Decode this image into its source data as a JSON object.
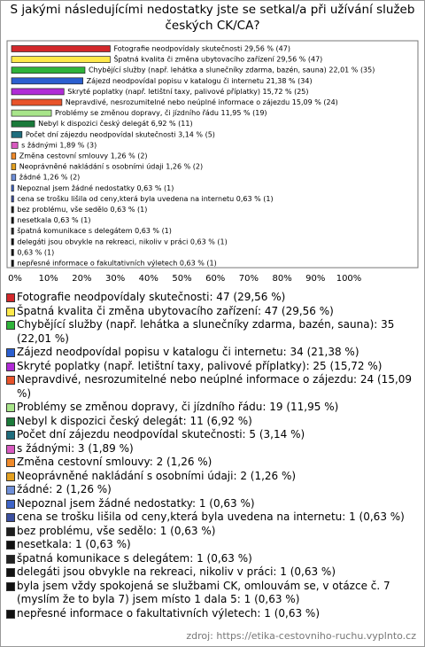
{
  "chart_data": {
    "type": "barh",
    "title": "S jakými následujícími nedostatky jste se setkal/a při užívání služeb českých CK/CA?",
    "source": "zdroj: https://etika-cestovniho-ruchu.vyplnto.cz",
    "values": [
      29.56,
      29.56,
      22.01,
      21.38,
      15.72,
      15.09,
      11.95,
      6.92,
      3.14,
      1.89,
      1.26,
      1.26,
      1.26,
      0.63,
      0.63,
      0.63,
      0.63,
      0.63,
      0.63,
      0.63,
      0.63
    ],
    "value_labels": [
      "Fotografie neodpovídaly skutečnosti 29,56 % (47)",
      "Špatná kvalita či změna ubytovacího zařízení 29,56 % (47)",
      "Chybějící služby (např. lehátka a slunečníky zdarma, bazén, sauna) 22,01 % (35)",
      "Zájezd neodpovídal popisu v katalogu či internetu 21,38 % (34)",
      "Skryté poplatky (např. letištní taxy, palivové příplatky) 15,72 % (25)",
      "Nepravdivé, nesrozumitelné nebo neúplné informace o zájezdu 15,09 % (24)",
      "Problémy se změnou dopravy, či jízdního řádu 11,95 % (19)",
      "Nebyl k dispozici český delegát 6,92 % (11)",
      "Počet dní zájezdu neodpovídal skutečnosti 3,14 % (5)",
      "s žádnými 1,89 % (3)",
      "Změna cestovní smlouvy 1,26 % (2)",
      "Neoprávněné nakládání s osobními údaji 1,26 % (2)",
      "žádné 1,26 % (2)",
      "Nepoznal jsem žádné nedostatky 0,63 % (1)",
      "cena se trošku lišila od ceny,která byla uvedena na internetu 0,63 % (1)",
      "bez problému, vše sedělo 0,63 % (1)",
      "nesetkala 0,63 % (1)",
      "špatná komunikace s delegátem 0,63 % (1)",
      "delegáti jsou obvykle na rekreaci, nikoliv v práci 0,63 % (1)",
      "0,63 % (1)",
      "nepřesné informace o fakultativních výletech 0,63 % (1)"
    ],
    "legend_labels": [
      "Fotografie neodpovídaly skutečnosti: 47 (29,56 %)",
      "Špatná kvalita či změna ubytovacího zařízení: 47 (29,56 %)",
      "Chybějící služby (např. lehátka a slunečníky zdarma, bazén, sauna): 35 (22,01 %)",
      "Zájezd neodpovídal popisu v katalogu či internetu: 34 (21,38 %)",
      "Skryté poplatky (např. letištní taxy, palivové příplatky): 25 (15,72 %)",
      "Nepravdivé, nesrozumitelné nebo neúplné informace o zájezdu: 24 (15,09 %)",
      "Problémy se změnou dopravy, či jízdního řádu: 19 (11,95 %)",
      "Nebyl k dispozici český delegát: 11 (6,92 %)",
      "Počet dní zájezdu neodpovídal skutečnosti: 5 (3,14 %)",
      "s žádnými: 3 (1,89 %)",
      "Změna cestovní smlouvy: 2 (1,26 %)",
      "Neoprávněné nakládání s osobními údaji: 2 (1,26 %)",
      "žádné: 2 (1,26 %)",
      "Nepoznal jsem žádné nedostatky: 1 (0,63 %)",
      "cena se trošku lišila od ceny,která byla uvedena na internetu: 1 (0,63 %)",
      "bez problému, vše sedělo: 1 (0,63 %)",
      "nesetkala: 1 (0,63 %)",
      "špatná komunikace s delegátem: 1 (0,63 %)",
      "delegáti jsou obvykle na rekreaci, nikoliv v práci: 1 (0,63 %)",
      "byla jsem vždy spokojená se službami CK, omlouvám se, v otázce č. 7 (myslím že to byla 7) jsem místo 1 dala 5: 1 (0,63 %)",
      "nepřesné informace o fakultativních výletech: 1 (0,63 %)"
    ],
    "colors": [
      "#d3282b",
      "#ffe94a",
      "#2fb33a",
      "#2b5fd0",
      "#b02bd6",
      "#e8532a",
      "#a8e58a",
      "#1a7a3a",
      "#1f6d7d",
      "#d85ac0",
      "#f08a2a",
      "#e3a020",
      "#6f8fd8",
      "#3e64c8",
      "#3b4fa0",
      "#1e1e1e",
      "#111111",
      "#222222",
      "#111111",
      "#111111",
      "#111111"
    ],
    "xlim": [
      0,
      100
    ],
    "xticks": [
      {
        "value": 0,
        "label": "0%"
      },
      {
        "value": 10,
        "label": "10%"
      },
      {
        "value": 20,
        "label": "20%"
      },
      {
        "value": 30,
        "label": "30%"
      },
      {
        "value": 40,
        "label": "40%"
      },
      {
        "value": 50,
        "label": "50%"
      },
      {
        "value": 60,
        "label": "60%"
      },
      {
        "value": 70,
        "label": "70%"
      },
      {
        "value": 80,
        "label": "80%"
      },
      {
        "value": 90,
        "label": "90%"
      },
      {
        "value": 100,
        "label": "100%"
      }
    ],
    "grid": false
  }
}
